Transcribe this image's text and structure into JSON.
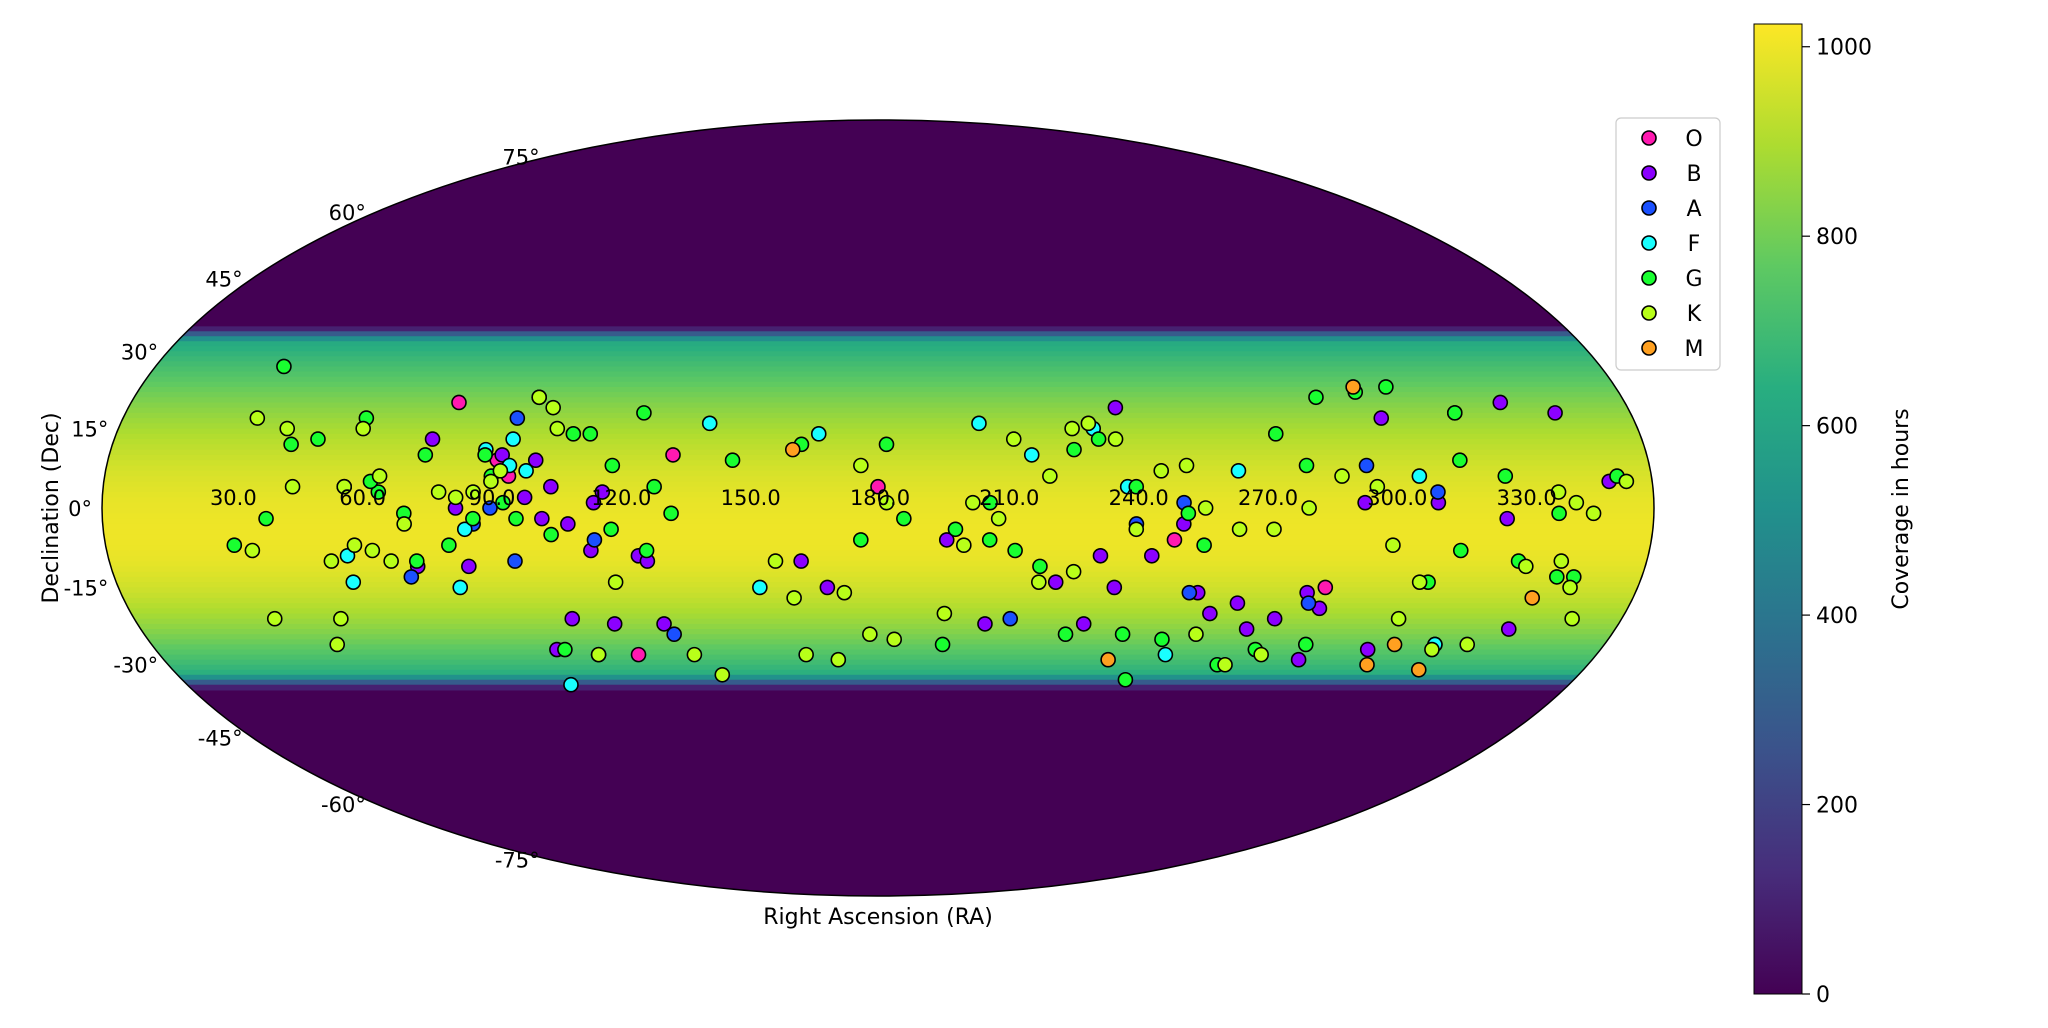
{
  "chart_data": {
    "type": "scatter",
    "projection": "mollweide",
    "xlabel": "Right Ascension (RA)",
    "ylabel": "Declination (Dec)",
    "x_tick_labels": [
      "30.0",
      "60.0",
      "90.0",
      "120.0",
      "150.0",
      "180.0",
      "210.0",
      "240.0",
      "270.0",
      "300.0",
      "330.0"
    ],
    "y_tick_labels": [
      "75°",
      "60°",
      "45°",
      "30°",
      "15°",
      "0°",
      "-15°",
      "-30°",
      "-45°",
      "-60°",
      "-75°"
    ],
    "x_ticks_deg": [
      30,
      60,
      90,
      120,
      150,
      180,
      210,
      240,
      270,
      300,
      330
    ],
    "y_ticks_deg": [
      75,
      60,
      45,
      30,
      15,
      0,
      -15,
      -30,
      -45,
      -60,
      -75
    ],
    "xlim": [
      0,
      360
    ],
    "ylim": [
      -90,
      90
    ],
    "grid": false,
    "legend_position": "top-right",
    "legend": [
      {
        "name": "O",
        "color": "#ff19b0"
      },
      {
        "name": "B",
        "color": "#8b00ff"
      },
      {
        "name": "A",
        "color": "#1a50ff"
      },
      {
        "name": "F",
        "color": "#19ffff"
      },
      {
        "name": "G",
        "color": "#19ff30"
      },
      {
        "name": "K",
        "color": "#b8ff19"
      },
      {
        "name": "M",
        "color": "#ffa020"
      }
    ],
    "colorbar": {
      "label": "Coverage in hours",
      "range": [
        0,
        1024
      ],
      "ticks": [
        0,
        200,
        400,
        600,
        800,
        1000
      ],
      "tick_labels": [
        "0",
        "200",
        "400",
        "600",
        "800",
        "1000"
      ],
      "colormap": "viridis"
    },
    "coverage_band": {
      "dec_min": -35,
      "dec_max": 35,
      "peak_dec": -5,
      "peak_hours": 1000,
      "edge_hours": 550
    },
    "series": [
      {
        "name": "O",
        "color": "#ff19b0",
        "points": [
          [
            79,
            20
          ],
          [
            91,
            9
          ],
          [
            94,
            6
          ],
          [
            132,
            10
          ],
          [
            180,
            4
          ],
          [
            249,
            -6
          ],
          [
            286,
            -15
          ],
          [
            120,
            -28
          ]
        ]
      },
      {
        "name": "B",
        "color": "#8b00ff",
        "points": [
          [
            75,
            13
          ],
          [
            82,
            0
          ],
          [
            98,
            2
          ],
          [
            102,
            -2
          ],
          [
            92,
            10
          ],
          [
            100,
            9
          ],
          [
            104,
            4
          ],
          [
            114,
            1
          ],
          [
            116,
            3
          ],
          [
            108,
            -3
          ],
          [
            113,
            -8
          ],
          [
            124,
            -9
          ],
          [
            126,
            -10
          ],
          [
            84,
            -11
          ],
          [
            72,
            -11
          ],
          [
            128,
            -22
          ],
          [
            100,
            -27
          ],
          [
            106,
            -21
          ],
          [
            116,
            -22
          ],
          [
            196,
            -6
          ],
          [
            162,
            -10
          ],
          [
            168,
            -15
          ],
          [
            206,
            -22
          ],
          [
            222,
            -14
          ],
          [
            232,
            -9
          ],
          [
            236,
            -15
          ],
          [
            256,
            -16
          ],
          [
            266,
            -18
          ],
          [
            282,
            -16
          ],
          [
            286,
            -19
          ],
          [
            276,
            -21
          ],
          [
            260,
            -20
          ],
          [
            270,
            -23
          ],
          [
            286,
            -29
          ],
          [
            302,
            -27
          ],
          [
            318,
            -26
          ],
          [
            334,
            -23
          ],
          [
            310,
            1
          ],
          [
            326,
            -2
          ],
          [
            350,
            5
          ],
          [
            330,
            20
          ],
          [
            342,
            18
          ],
          [
            300,
            17
          ],
          [
            318,
            18
          ],
          [
            293,
            1
          ],
          [
            237,
            19
          ],
          [
            244,
            -9
          ],
          [
            251,
            -3
          ],
          [
            230,
            -22
          ]
        ]
      },
      {
        "name": "A",
        "color": "#1a50ff",
        "points": [
          [
            98,
            21
          ],
          [
            94,
            17
          ],
          [
            90,
            0
          ],
          [
            86,
            -3
          ],
          [
            95,
            -10
          ],
          [
            114,
            -6
          ],
          [
            130,
            -24
          ],
          [
            70,
            -13
          ],
          [
            240,
            -3
          ],
          [
            251,
            1
          ],
          [
            254,
            -16
          ],
          [
            283,
            -18
          ],
          [
            294,
            8
          ],
          [
            310,
            3
          ],
          [
            212,
            -21
          ]
        ]
      },
      {
        "name": "F",
        "color": "#19ffff",
        "points": [
          [
            56,
            -14
          ],
          [
            56,
            -9
          ],
          [
            81,
            -15
          ],
          [
            84,
            -4
          ],
          [
            88,
            11
          ],
          [
            94,
            13
          ],
          [
            94,
            8
          ],
          [
            98,
            7
          ],
          [
            140,
            16
          ],
          [
            152,
            -15
          ],
          [
            166,
            14
          ],
          [
            204,
            16
          ],
          [
            216,
            10
          ],
          [
            231,
            15
          ],
          [
            238,
            4
          ],
          [
            264,
            7
          ],
          [
            306,
            6
          ],
          [
            318,
            -26
          ],
          [
            252,
            -28
          ],
          [
            100,
            -34
          ]
        ]
      },
      {
        "name": "G",
        "color": "#19ff30",
        "points": [
          [
            32,
            27
          ],
          [
            42,
            12
          ],
          [
            58,
            17
          ],
          [
            48,
            13
          ],
          [
            56,
            4
          ],
          [
            64,
            3
          ],
          [
            72,
            -10
          ],
          [
            80,
            -7
          ],
          [
            86,
            -2
          ],
          [
            93,
            1
          ],
          [
            96,
            -2
          ],
          [
            104,
            -5
          ],
          [
            118,
            -4
          ],
          [
            126,
            -8
          ],
          [
            90,
            6
          ],
          [
            88,
            10
          ],
          [
            108,
            14
          ],
          [
            112,
            14
          ],
          [
            124,
            18
          ],
          [
            132,
            -1
          ],
          [
            102,
            -27
          ],
          [
            110,
            -28
          ],
          [
            146,
            9
          ],
          [
            162,
            12
          ],
          [
            182,
            12
          ],
          [
            176,
            -6
          ],
          [
            186,
            -2
          ],
          [
            198,
            -4
          ],
          [
            206,
            -6
          ],
          [
            212,
            -8
          ],
          [
            218,
            -11
          ],
          [
            226,
            11
          ],
          [
            232,
            13
          ],
          [
            252,
            -1
          ],
          [
            274,
            14
          ],
          [
            280,
            8
          ],
          [
            286,
            21
          ],
          [
            296,
            22
          ],
          [
            304,
            23
          ],
          [
            318,
            18
          ],
          [
            316,
            9
          ],
          [
            326,
            6
          ],
          [
            338,
            -1
          ],
          [
            352,
            6
          ],
          [
            240,
            -24
          ],
          [
            244,
            -33
          ],
          [
            266,
            -30
          ],
          [
            274,
            -27
          ],
          [
            286,
            -26
          ],
          [
            310,
            -14
          ],
          [
            316,
            -8
          ],
          [
            330,
            -10
          ],
          [
            340,
            -13
          ],
          [
            344,
            -13
          ],
          [
            74,
            10
          ],
          [
            62,
            5
          ],
          [
            70,
            -1
          ],
          [
            38,
            -2
          ],
          [
            30,
            -7
          ],
          [
            118,
            8
          ],
          [
            128,
            4
          ],
          [
            196,
            -26
          ],
          [
            226,
            -24
          ],
          [
            250,
            -25
          ],
          [
            256,
            -7
          ],
          [
            206,
            1
          ],
          [
            240,
            4
          ]
        ]
      },
      {
        "name": "K",
        "color": "#b8ff19",
        "points": [
          [
            32,
            17
          ],
          [
            40,
            15
          ],
          [
            44,
            4
          ],
          [
            56,
            4
          ],
          [
            58,
            15
          ],
          [
            64,
            6
          ],
          [
            70,
            -3
          ],
          [
            78,
            3
          ],
          [
            82,
            2
          ],
          [
            86,
            3
          ],
          [
            90,
            5
          ],
          [
            92,
            7
          ],
          [
            98,
            21
          ],
          [
            102,
            19
          ],
          [
            104,
            15
          ],
          [
            52,
            -10
          ],
          [
            58,
            -7
          ],
          [
            62,
            -8
          ],
          [
            66,
            -10
          ],
          [
            50,
            -21
          ],
          [
            46,
            -26
          ],
          [
            34,
            -8
          ],
          [
            34,
            -21
          ],
          [
            118,
            -14
          ],
          [
            110,
            -28
          ],
          [
            134,
            -28
          ],
          [
            140,
            -32
          ],
          [
            156,
            -10
          ],
          [
            172,
            -16
          ],
          [
            178,
            -24
          ],
          [
            184,
            -25
          ],
          [
            162,
            -28
          ],
          [
            170,
            -29
          ],
          [
            176,
            8
          ],
          [
            182,
            1
          ],
          [
            200,
            -7
          ],
          [
            208,
            -2
          ],
          [
            212,
            13
          ],
          [
            220,
            6
          ],
          [
            226,
            15
          ],
          [
            230,
            16
          ],
          [
            236,
            13
          ],
          [
            240,
            -4
          ],
          [
            246,
            7
          ],
          [
            252,
            8
          ],
          [
            256,
            0
          ],
          [
            264,
            -4
          ],
          [
            272,
            -4
          ],
          [
            280,
            0
          ],
          [
            288,
            6
          ],
          [
            296,
            4
          ],
          [
            300,
            -7
          ],
          [
            308,
            -14
          ],
          [
            306,
            -21
          ],
          [
            318,
            -27
          ],
          [
            326,
            -26
          ],
          [
            332,
            -11
          ],
          [
            340,
            -10
          ],
          [
            344,
            -15
          ],
          [
            348,
            -21
          ],
          [
            338,
            3
          ],
          [
            342,
            1
          ],
          [
            346,
            -1
          ],
          [
            354,
            5
          ],
          [
            276,
            -28
          ],
          [
            268,
            -30
          ],
          [
            258,
            -24
          ],
          [
            226,
            -12
          ],
          [
            218,
            -14
          ],
          [
            196,
            -20
          ],
          [
            160,
            -17
          ],
          [
            202,
            1
          ]
        ]
      },
      {
        "name": "M",
        "color": "#ffa020",
        "points": [
          [
            160,
            11
          ],
          [
            296,
            23
          ],
          [
            238,
            -29
          ],
          [
            308,
            -26
          ],
          [
            318,
            -31
          ],
          [
            336,
            -17
          ],
          [
            304,
            -30
          ]
        ]
      }
    ]
  }
}
